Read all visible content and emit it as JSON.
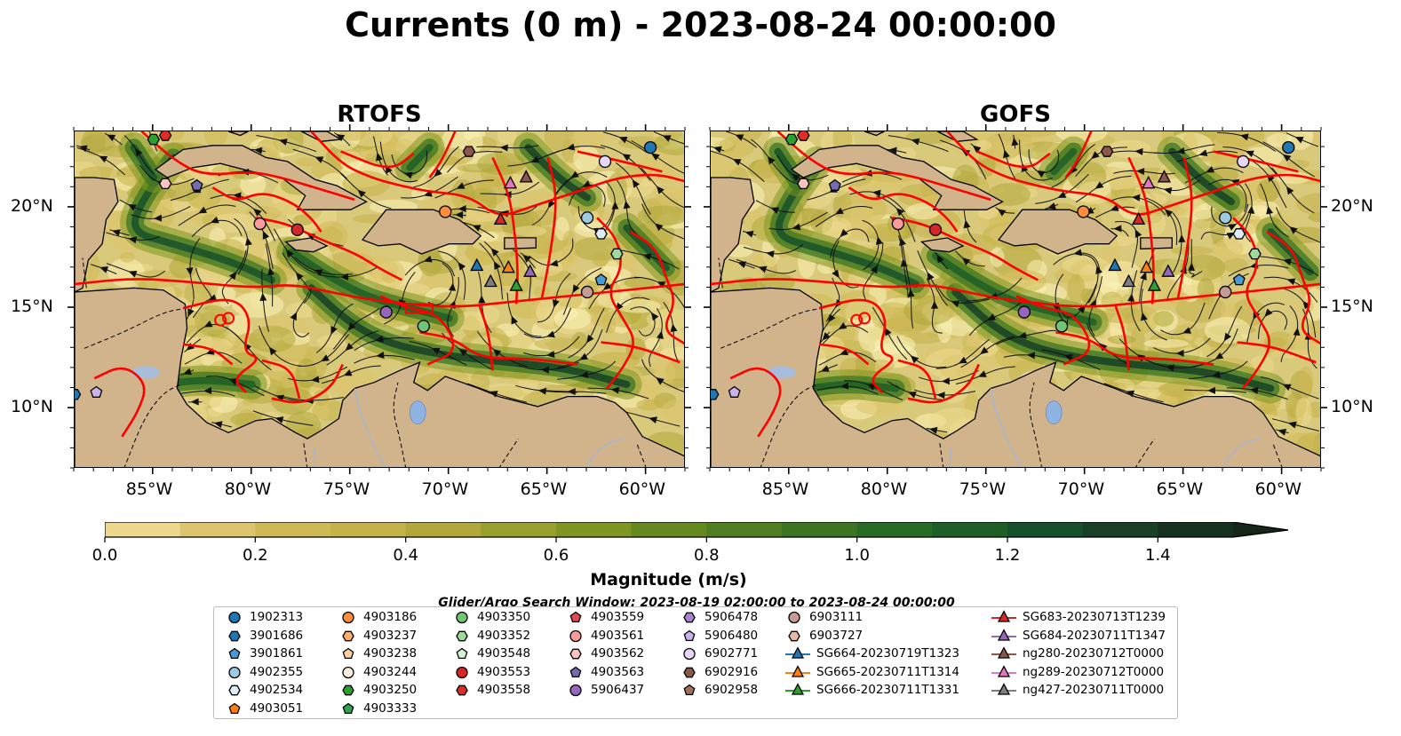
{
  "title": "Currents (0 m) - 2023-08-24 00:00:00",
  "panels": [
    {
      "name": "RTOFS"
    },
    {
      "name": "GOFS"
    }
  ],
  "axes": {
    "lon_ticks": [
      "85°W",
      "80°W",
      "75°W",
      "70°W",
      "65°W",
      "60°W"
    ],
    "lat_ticks": [
      "20°N",
      "15°N",
      "10°N"
    ]
  },
  "colorbar": {
    "label": "Magnitude (m/s)",
    "ticks": [
      "0.0",
      "0.2",
      "0.4",
      "0.6",
      "0.8",
      "1.0",
      "1.2",
      "1.4"
    ],
    "range": [
      0.0,
      1.5
    ],
    "extend": "max",
    "colors": [
      "#fbf2b8",
      "#ecd98e",
      "#dcc56c",
      "#cfb955",
      "#c4b24b",
      "#b0a83b",
      "#97a02c",
      "#7f9722",
      "#65891f",
      "#4f7f20",
      "#3c7521",
      "#276c24",
      "#1d5f25",
      "#17512a",
      "#174026",
      "#16301f",
      "#152518"
    ]
  },
  "search_window": "Glider/Argo Search Window: 2023-08-19 02:00:00 to 2023-08-24 00:00:00",
  "land_color": "#d2b48c",
  "boundary_color": "#ff0000",
  "legend": {
    "columns": [
      [
        {
          "label": "1902313",
          "marker": "circle",
          "color": "#1f77b4"
        },
        {
          "label": "3901686",
          "marker": "hexagon",
          "color": "#1f77b4"
        },
        {
          "label": "3901861",
          "marker": "pentagon",
          "color": "#4a9ad6"
        },
        {
          "label": "4902355",
          "marker": "circle",
          "color": "#9ecae1"
        },
        {
          "label": "4902534",
          "marker": "hexagon",
          "color": "#deebf7"
        },
        {
          "label": "4903051",
          "marker": "pentagon",
          "color": "#ff7f0e"
        }
      ],
      [
        {
          "label": "4903186",
          "marker": "circle",
          "color": "#fd8d3c"
        },
        {
          "label": "4903237",
          "marker": "hexagon",
          "color": "#fdae6b"
        },
        {
          "label": "4903238",
          "marker": "pentagon",
          "color": "#fdd0a2"
        },
        {
          "label": "4903244",
          "marker": "circle",
          "color": "#feedde"
        },
        {
          "label": "4903250",
          "marker": "hexagon",
          "color": "#2ca02c"
        },
        {
          "label": "4903333",
          "marker": "pentagon",
          "color": "#31a354"
        }
      ],
      [
        {
          "label": "4903350",
          "marker": "circle",
          "color": "#74c476"
        },
        {
          "label": "4903352",
          "marker": "hexagon",
          "color": "#a1d99b"
        },
        {
          "label": "4903548",
          "marker": "pentagon",
          "color": "#d9f0d3"
        },
        {
          "label": "4903553",
          "marker": "circle",
          "color": "#d62728"
        },
        {
          "label": "4903558",
          "marker": "hexagon",
          "color": "#de2d26"
        }
      ],
      [
        {
          "label": "4903559",
          "marker": "pentagon",
          "color": "#e34a53"
        },
        {
          "label": "4903561",
          "marker": "circle",
          "color": "#fc9b9b"
        },
        {
          "label": "4903562",
          "marker": "hexagon",
          "color": "#fcc5c0"
        },
        {
          "label": "4903563",
          "marker": "pentagon",
          "color": "#756bb1"
        },
        {
          "label": "5906437",
          "marker": "circle",
          "color": "#9467bd"
        }
      ],
      [
        {
          "label": "5906478",
          "marker": "hexagon",
          "color": "#a884d0"
        },
        {
          "label": "5906480",
          "marker": "pentagon",
          "color": "#c9b3ea"
        },
        {
          "label": "6902771",
          "marker": "circle",
          "color": "#e7d6f5"
        },
        {
          "label": "6902916",
          "marker": "hexagon",
          "color": "#8c564b"
        },
        {
          "label": "6902958",
          "marker": "pentagon",
          "color": "#a0705f"
        }
      ],
      [
        {
          "label": "6903111",
          "marker": "circle",
          "color": "#c49c94"
        },
        {
          "label": "6903727",
          "marker": "hexagon",
          "color": "#e8b8a8"
        },
        {
          "label": "SG664-20230719T1323",
          "marker": "triangle",
          "color": "#1f77b4"
        },
        {
          "label": "SG665-20230711T1314",
          "marker": "triangle",
          "color": "#ff7f0e"
        },
        {
          "label": "SG666-20230711T1331",
          "marker": "triangle",
          "color": "#2ca02c"
        }
      ],
      [
        {
          "label": "SG683-20230713T1239",
          "marker": "triangle",
          "color": "#d62728"
        },
        {
          "label": "SG684-20230711T1347",
          "marker": "triangle",
          "color": "#9467bd"
        },
        {
          "label": "ng280-20230712T0000",
          "marker": "triangle",
          "color": "#8c564b"
        },
        {
          "label": "ng289-20230712T0000",
          "marker": "triangle",
          "color": "#e377c2"
        },
        {
          "label": "ng427-20230711T0000",
          "marker": "triangle",
          "color": "#7f7f7f"
        }
      ]
    ]
  },
  "chart_data": {
    "type": "map",
    "xlim": [
      -89,
      -58
    ],
    "ylim": [
      7,
      23.8
    ],
    "observations": [
      {
        "id": "1902313",
        "lon": -59.8,
        "lat": 23.0
      },
      {
        "id": "3901686",
        "lon": -89.0,
        "lat": 10.7
      },
      {
        "id": "3901861",
        "lon": -62.3,
        "lat": 16.4
      },
      {
        "id": "4902355",
        "lon": -63.0,
        "lat": 19.5
      },
      {
        "id": "4902534",
        "lon": -62.3,
        "lat": 18.7
      },
      {
        "id": "4903186",
        "lon": -70.2,
        "lat": 19.8
      },
      {
        "id": "4903250",
        "lon": -85.0,
        "lat": 23.4
      },
      {
        "id": "4903350",
        "lon": -71.3,
        "lat": 14.1
      },
      {
        "id": "4903352",
        "lon": -61.5,
        "lat": 17.7
      },
      {
        "id": "4903553",
        "lon": -77.7,
        "lat": 18.9
      },
      {
        "id": "4903558",
        "lon": -84.4,
        "lat": 23.6
      },
      {
        "id": "4903561",
        "lon": -79.6,
        "lat": 19.2
      },
      {
        "id": "4903562",
        "lon": -84.4,
        "lat": 21.2
      },
      {
        "id": "4903563",
        "lon": -82.8,
        "lat": 21.1
      },
      {
        "id": "5906437",
        "lon": -73.2,
        "lat": 14.8
      },
      {
        "id": "5906480",
        "lon": -87.9,
        "lat": 10.8
      },
      {
        "id": "6902771",
        "lon": -62.1,
        "lat": 22.3
      },
      {
        "id": "6902916",
        "lon": -69.0,
        "lat": 22.8
      },
      {
        "id": "6903111",
        "lon": -63.0,
        "lat": 15.8
      },
      {
        "id": "SG664-20230719T1323",
        "lon": -68.6,
        "lat": 17.1
      },
      {
        "id": "SG665-20230711T1314",
        "lon": -67.0,
        "lat": 17.0
      },
      {
        "id": "SG666-20230711T1331",
        "lon": -66.6,
        "lat": 16.1
      },
      {
        "id": "SG683-20230713T1239",
        "lon": -67.4,
        "lat": 19.4
      },
      {
        "id": "SG684-20230711T1347",
        "lon": -65.9,
        "lat": 16.8
      },
      {
        "id": "ng280-20230712T0000",
        "lon": -66.1,
        "lat": 21.5
      },
      {
        "id": "ng289-20230712T0000",
        "lon": -66.9,
        "lat": 21.2
      },
      {
        "id": "ng427-20230711T0000",
        "lon": -67.9,
        "lat": 16.3
      }
    ]
  }
}
